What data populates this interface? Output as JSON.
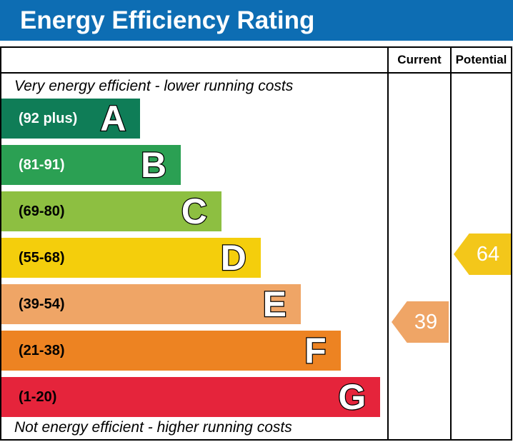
{
  "header": {
    "title": "Energy Efficiency Rating",
    "background_color": "#0d6db3",
    "text_color": "#ffffff"
  },
  "table": {
    "columns": [
      {
        "label": "Current"
      },
      {
        "label": "Potential"
      }
    ],
    "caption_top": "Very energy efficient - lower running costs",
    "caption_bottom": "Not energy efficient - higher running costs",
    "bands": [
      {
        "letter": "A",
        "range": "(92 plus)",
        "color": "#0f7d57",
        "width_pct": 36.0,
        "range_text_color": "#ffffff"
      },
      {
        "letter": "B",
        "range": "(81-91)",
        "color": "#2ba053",
        "width_pct": 46.5,
        "range_text_color": "#ffffff"
      },
      {
        "letter": "C",
        "range": "(69-80)",
        "color": "#8dbf41",
        "width_pct": 57.0,
        "range_text_color": "#000000"
      },
      {
        "letter": "D",
        "range": "(55-68)",
        "color": "#f4ce0c",
        "width_pct": 67.2,
        "range_text_color": "#000000"
      },
      {
        "letter": "E",
        "range": "(39-54)",
        "color": "#efa566",
        "width_pct": 77.6,
        "range_text_color": "#000000"
      },
      {
        "letter": "F",
        "range": "(21-38)",
        "color": "#ed8322",
        "width_pct": 87.9,
        "range_text_color": "#000000"
      },
      {
        "letter": "G",
        "range": "(1-20)",
        "color": "#e5243b",
        "width_pct": 98.2,
        "range_text_color": "#000000"
      }
    ],
    "ratings": {
      "current": {
        "value": "39",
        "color": "#efa566",
        "band": "E"
      },
      "potential": {
        "value": "64",
        "color": "#f3c71a",
        "band": "D"
      }
    }
  },
  "chart_data": {
    "type": "bar",
    "title": "Energy Efficiency Rating",
    "categories": [
      "A (92 plus)",
      "B (81-91)",
      "C (69-80)",
      "D (55-68)",
      "E (39-54)",
      "F (21-38)",
      "G (1-20)"
    ],
    "values": [
      36.0,
      46.5,
      57.0,
      67.2,
      77.6,
      87.9,
      98.2
    ],
    "value_unit": "band bar length, % of chart column width",
    "band_colors": [
      "#0f7d57",
      "#2ba053",
      "#8dbf41",
      "#f4ce0c",
      "#efa566",
      "#ed8322",
      "#e5243b"
    ],
    "markers": {
      "current": {
        "value": 39,
        "band": "E",
        "column": "Current",
        "color": "#efa566"
      },
      "potential": {
        "value": 64,
        "band": "D",
        "column": "Potential",
        "color": "#f3c71a"
      }
    },
    "annotations": [
      "Very energy efficient - lower running costs",
      "Not energy efficient - higher running costs"
    ],
    "grid": false,
    "legend_position": "none"
  }
}
